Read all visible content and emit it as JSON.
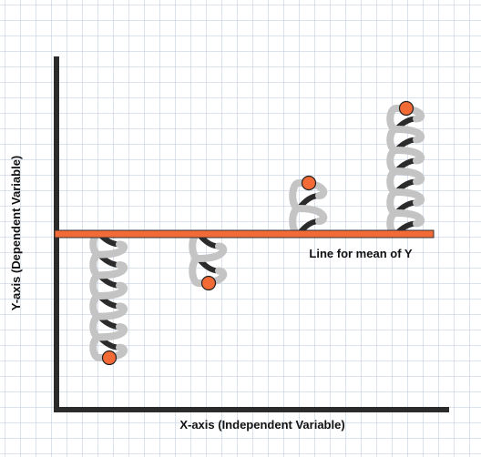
{
  "axes": {
    "y_label": "Y-axis (Dependent Variable)",
    "x_label": "X-axis (Independent Variable)"
  },
  "mean_line": {
    "label": "Line for mean of Y"
  }
}
